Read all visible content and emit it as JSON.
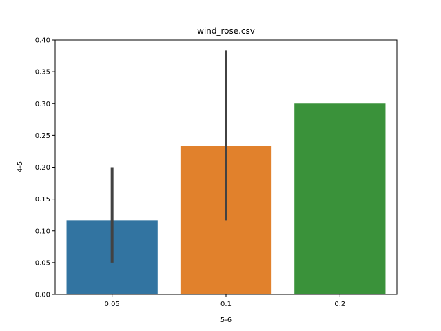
{
  "chart_data": {
    "type": "bar",
    "title": "wind_rose.csv",
    "xlabel": "5-6",
    "ylabel": "4-5",
    "categories": [
      "0.05",
      "0.1",
      "0.2"
    ],
    "values": [
      0.1167,
      0.2333,
      0.3
    ],
    "error_bars": [
      [
        0.05,
        0.2
      ],
      [
        0.1167,
        0.3833
      ],
      null
    ],
    "colors": [
      "#3274a1",
      "#e1812c",
      "#3a923a"
    ],
    "ylim": [
      0,
      0.4
    ],
    "yticks": [
      "0.00",
      "0.05",
      "0.10",
      "0.15",
      "0.20",
      "0.25",
      "0.30",
      "0.35",
      "0.40"
    ],
    "grid": false,
    "legend": "none"
  }
}
